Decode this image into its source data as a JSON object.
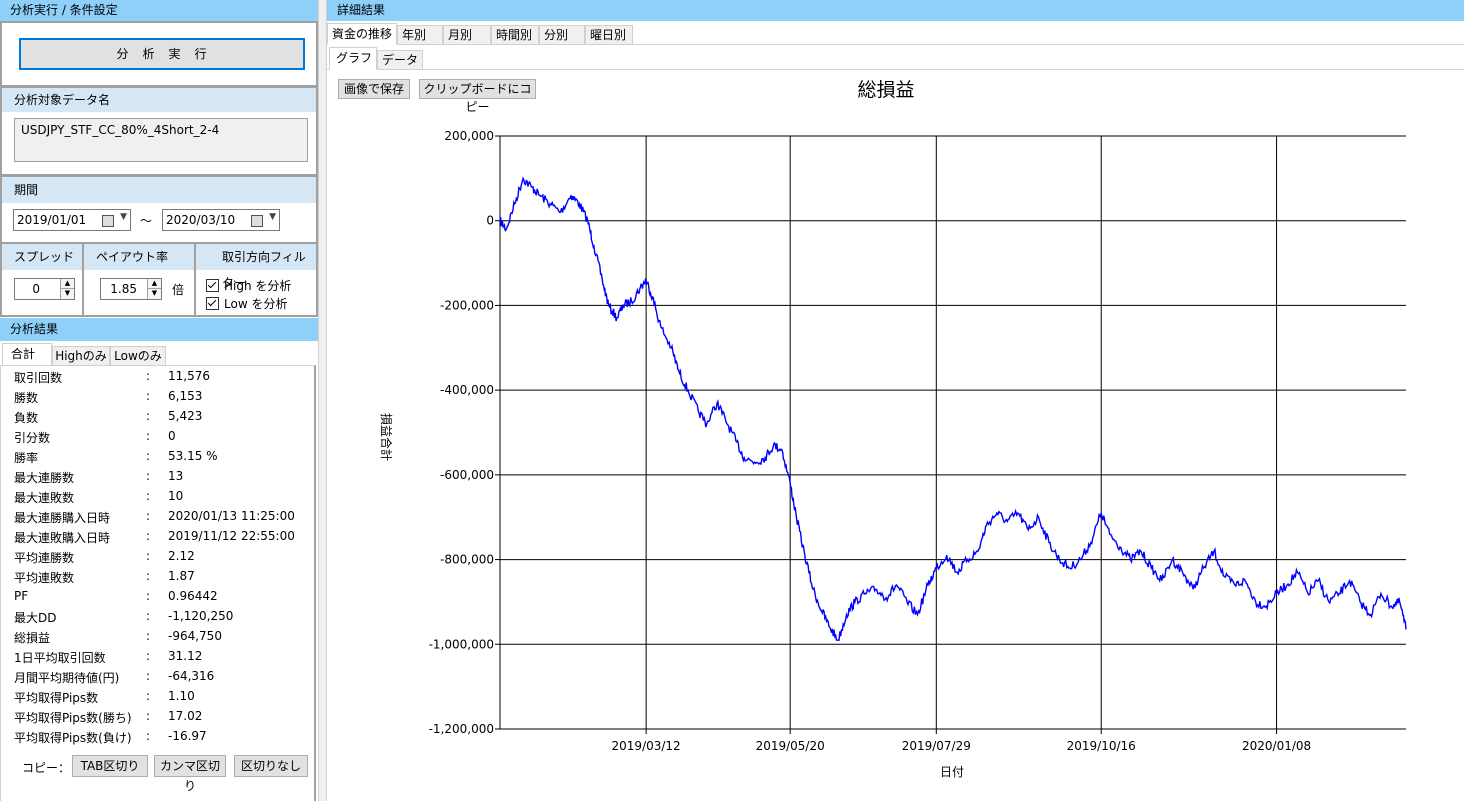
{
  "left": {
    "header": "分析実行 / 条件設定",
    "run_button": "分　析　実　行",
    "target_header": "分析対象データ名",
    "target_name": "USDJPY_STF_CC_80%_4Short_2-4",
    "period_header": "期間",
    "date_from": "2019/01/01",
    "tilde": "～",
    "date_to": "2020/03/10",
    "spread_header": "スプレッド",
    "spread_value": "0",
    "payout_header": "ペイアウト率",
    "payout_value": "1.85",
    "payout_unit": "倍",
    "filter_header": "取引方向フィルター",
    "filter_high": "High を分析",
    "filter_low": "Low を分析",
    "results_header": "分析結果",
    "tabs": [
      "合計",
      "Highのみ",
      "Lowのみ"
    ],
    "colon": ":",
    "stats": [
      {
        "label": "取引回数",
        "value": "11,576"
      },
      {
        "label": "勝数",
        "value": "6,153"
      },
      {
        "label": "負数",
        "value": "5,423"
      },
      {
        "label": "引分数",
        "value": "0"
      },
      {
        "label": "勝率",
        "value": "53.15 %"
      },
      {
        "label": "最大連勝数",
        "value": "13"
      },
      {
        "label": "最大連敗数",
        "value": "10"
      },
      {
        "label": "最大連勝購入日時",
        "value": "2020/01/13 11:25:00"
      },
      {
        "label": "最大連敗購入日時",
        "value": "2019/11/12 22:55:00"
      },
      {
        "label": "平均連勝数",
        "value": "2.12"
      },
      {
        "label": "平均連敗数",
        "value": "1.87"
      },
      {
        "label": "PF",
        "value": "0.96442"
      },
      {
        "label": "最大DD",
        "value": "-1,120,250"
      },
      {
        "label": "総損益",
        "value": "-964,750"
      },
      {
        "label": "1日平均取引回数",
        "value": "31.12"
      },
      {
        "label": "月間平均期待値(円)",
        "value": "-64,316"
      },
      {
        "label": "平均取得Pips数",
        "value": "1.10"
      },
      {
        "label": "平均取得Pips数(勝ち)",
        "value": "17.02"
      },
      {
        "label": "平均取得Pips数(負け)",
        "value": "-16.97"
      }
    ],
    "copy_label": "コピー：",
    "copy_tab": "TAB区切り",
    "copy_comma": "カンマ区切り",
    "copy_none": "区切りなし"
  },
  "right": {
    "header": "詳細結果",
    "tabs": [
      "資金の推移",
      "年別",
      "月別",
      "時間別",
      "分別",
      "曜日別"
    ],
    "subtabs": [
      "グラフ",
      "データ"
    ],
    "save_image": "画像で保存",
    "copy_clipboard": "クリップボードにコピー"
  },
  "colors": {
    "header_bg": "#8fd0fb",
    "subheader_bg": "#d5e6f5",
    "line": "#0000ff"
  },
  "chart_data": {
    "type": "line",
    "title": "総損益",
    "xlabel": "日付",
    "ylabel": "損益合計",
    "ylim": [
      -1200000,
      200000
    ],
    "yticks": [
      200000,
      0,
      -200000,
      -400000,
      -600000,
      -800000,
      -1000000,
      -1200000
    ],
    "ytick_labels": [
      "200,000",
      "0",
      "-200,000",
      "-400,000",
      "-600,000",
      "-800,000",
      "-1,000,000",
      "-1,200,000"
    ],
    "xlim": [
      "2019-01-01",
      "2020-03-10"
    ],
    "xticks": [
      "2019-03-12",
      "2019-05-20",
      "2019-07-29",
      "2019-10-16",
      "2020-01-08"
    ],
    "xtick_labels": [
      "2019/03/12",
      "2019/05/20",
      "2019/07/29",
      "2019/10/16",
      "2020/01/08"
    ],
    "grid": true,
    "series": [
      {
        "x": [
          "2019-01-01",
          "2019-01-04",
          "2019-01-08",
          "2019-01-12",
          "2019-01-16",
          "2019-01-20",
          "2019-01-25",
          "2019-01-30",
          "2019-02-04",
          "2019-02-08",
          "2019-02-12",
          "2019-02-15",
          "2019-02-19",
          "2019-02-22",
          "2019-02-26",
          "2019-03-01",
          "2019-03-05",
          "2019-03-09",
          "2019-03-12",
          "2019-03-15",
          "2019-03-19",
          "2019-03-24",
          "2019-03-28",
          "2019-04-01",
          "2019-04-06",
          "2019-04-10",
          "2019-04-15",
          "2019-04-19",
          "2019-04-24",
          "2019-04-28",
          "2019-05-03",
          "2019-05-08",
          "2019-05-12",
          "2019-05-16",
          "2019-05-20",
          "2019-05-23",
          "2019-05-27",
          "2019-05-31",
          "2019-06-04",
          "2019-06-08",
          "2019-06-12",
          "2019-06-16",
          "2019-06-20",
          "2019-06-25",
          "2019-06-30",
          "2019-07-05",
          "2019-07-10",
          "2019-07-15",
          "2019-07-20",
          "2019-07-25",
          "2019-07-29",
          "2019-08-03",
          "2019-08-08",
          "2019-08-13",
          "2019-08-18",
          "2019-08-22",
          "2019-08-27",
          "2019-09-01",
          "2019-09-06",
          "2019-09-11",
          "2019-09-16",
          "2019-09-21",
          "2019-09-26",
          "2019-10-01",
          "2019-10-06",
          "2019-10-11",
          "2019-10-16",
          "2019-10-20",
          "2019-10-25",
          "2019-10-30",
          "2019-11-04",
          "2019-11-09",
          "2019-11-14",
          "2019-11-19",
          "2019-11-24",
          "2019-11-29",
          "2019-12-04",
          "2019-12-09",
          "2019-12-14",
          "2019-12-19",
          "2019-12-24",
          "2019-12-29",
          "2020-01-03",
          "2020-01-08",
          "2020-01-13",
          "2020-01-18",
          "2020-01-23",
          "2020-01-28",
          "2020-02-02",
          "2020-02-07",
          "2020-02-12",
          "2020-02-17",
          "2020-02-22",
          "2020-02-27",
          "2020-03-03",
          "2020-03-07",
          "2020-03-10"
        ],
        "y": [
          0,
          -20000,
          40000,
          100000,
          80000,
          60000,
          40000,
          20000,
          60000,
          40000,
          0,
          -60000,
          -140000,
          -200000,
          -230000,
          -200000,
          -190000,
          -160000,
          -140000,
          -180000,
          -250000,
          -300000,
          -360000,
          -400000,
          -450000,
          -480000,
          -430000,
          -470000,
          -520000,
          -560000,
          -570000,
          -560000,
          -530000,
          -540000,
          -620000,
          -700000,
          -790000,
          -870000,
          -920000,
          -960000,
          -990000,
          -930000,
          -900000,
          -880000,
          -870000,
          -890000,
          -860000,
          -900000,
          -930000,
          -860000,
          -820000,
          -790000,
          -830000,
          -800000,
          -780000,
          -720000,
          -690000,
          -710000,
          -690000,
          -730000,
          -700000,
          -760000,
          -800000,
          -820000,
          -800000,
          -760000,
          -690000,
          -740000,
          -770000,
          -800000,
          -780000,
          -820000,
          -850000,
          -800000,
          -830000,
          -870000,
          -820000,
          -780000,
          -840000,
          -860000,
          -850000,
          -900000,
          -910000,
          -880000,
          -860000,
          -830000,
          -880000,
          -850000,
          -900000,
          -880000,
          -850000,
          -900000,
          -930000,
          -880000,
          -910000,
          -900000,
          -964750
        ]
      }
    ]
  }
}
